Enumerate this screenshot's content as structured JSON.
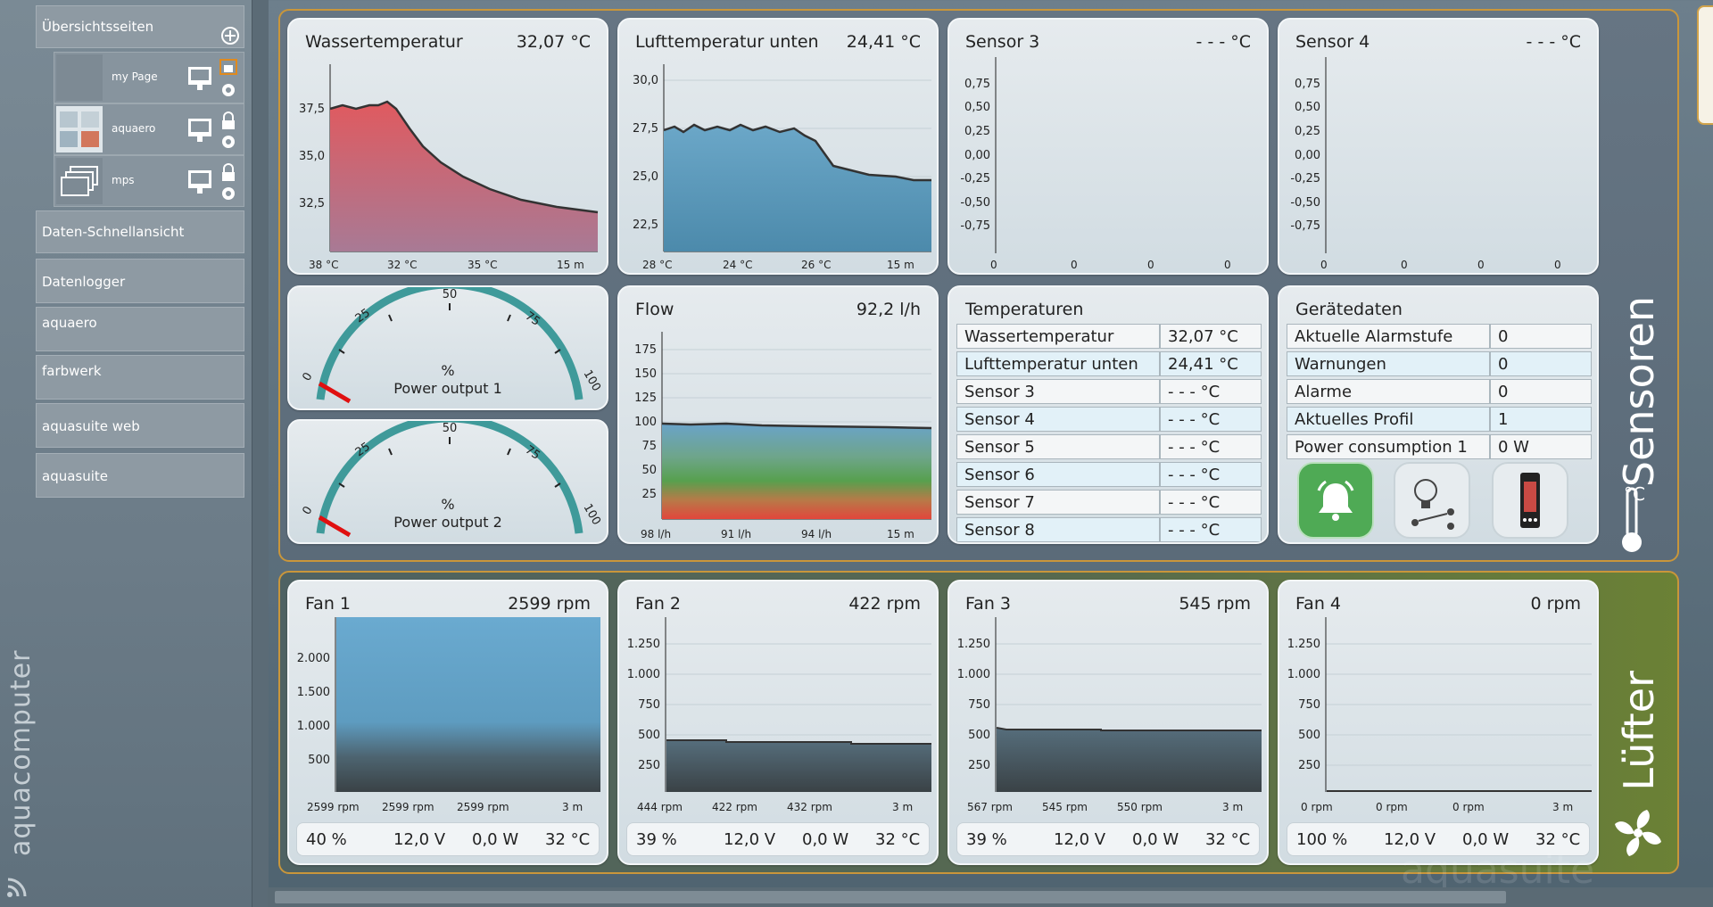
{
  "sidebar": {
    "overview_label": "Übersichtsseiten",
    "pages": [
      {
        "label": "my Page"
      },
      {
        "label": "aquaero"
      },
      {
        "label": "mps"
      }
    ],
    "items": [
      "Daten-Schnellansicht",
      "Datenlogger",
      "aquaero",
      "farbwerk",
      "aquasuite web",
      "aquasuite"
    ],
    "brand": "aquacomputer"
  },
  "groups": {
    "sensors_title": "Sensoren",
    "sensors_unit": "°C",
    "fans_title": "Lüfter"
  },
  "panels": {
    "water": {
      "title": "Wassertemperatur",
      "value": "32,07 °C",
      "stats": [
        "38 °C",
        "32 °C",
        "35 °C",
        "15 m"
      ],
      "ticks": [
        "37,5",
        "35,0",
        "32,5"
      ]
    },
    "air": {
      "title": "Lufttemperatur unten",
      "value": "24,41 °C",
      "stats": [
        "28 °C",
        "24 °C",
        "26 °C",
        "15 m"
      ],
      "ticks": [
        "30,0",
        "27,5",
        "25,0",
        "22,5"
      ]
    },
    "sensor3": {
      "title": "Sensor 3",
      "value": "- - - °C",
      "stats": [
        "0",
        "0",
        "0",
        "0"
      ]
    },
    "sensor4": {
      "title": "Sensor 4",
      "value": "- - - °C",
      "stats": [
        "0",
        "0",
        "0",
        "0"
      ]
    },
    "empty_ticks": [
      "0,75",
      "0,50",
      "0,25",
      "0,00",
      "-0,25",
      "-0,50",
      "-0,75"
    ],
    "power1": {
      "unit": "%",
      "label": "Power output 1",
      "ticks": [
        "0",
        "25",
        "50",
        "75",
        "100"
      ]
    },
    "power2": {
      "unit": "%",
      "label": "Power output 2",
      "ticks": [
        "0",
        "25",
        "50",
        "75",
        "100"
      ]
    },
    "flow": {
      "title": "Flow",
      "value": "92,2 l/h",
      "stats": [
        "98 l/h",
        "91 l/h",
        "94 l/h",
        "15 m"
      ],
      "ticks": [
        "175",
        "150",
        "125",
        "100",
        "75",
        "50",
        "25"
      ]
    },
    "temps": {
      "title": "Temperaturen",
      "rows": [
        [
          "Wassertemperatur",
          "32,07 °C"
        ],
        [
          "Lufttemperatur unten",
          "24,41 °C"
        ],
        [
          "Sensor 3",
          "- - - °C"
        ],
        [
          "Sensor 4",
          "- - - °C"
        ],
        [
          "Sensor 5",
          "- - - °C"
        ],
        [
          "Sensor 6",
          "- - - °C"
        ],
        [
          "Sensor 7",
          "- - - °C"
        ],
        [
          "Sensor 8",
          "- - - °C"
        ]
      ]
    },
    "device": {
      "title": "Gerätedaten",
      "rows": [
        [
          "Aktuelle Alarmstufe",
          "0"
        ],
        [
          "Warnungen",
          "0"
        ],
        [
          "Alarme",
          "0"
        ],
        [
          "Aktuelles Profil",
          "1"
        ],
        [
          "Power consumption 1",
          "0 W"
        ]
      ]
    }
  },
  "fans": [
    {
      "title": "Fan 1",
      "value": "2599 rpm",
      "stats": [
        "2599 rpm",
        "2599 rpm",
        "2599 rpm",
        "3 m"
      ],
      "ticks": [
        "2.000",
        "1.500",
        "1.000",
        "500"
      ],
      "bar": [
        "40 %",
        "12,0 V",
        "0,0 W",
        "32 °C"
      ]
    },
    {
      "title": "Fan 2",
      "value": "422 rpm",
      "stats": [
        "444 rpm",
        "422 rpm",
        "432 rpm",
        "3 m"
      ],
      "ticks": [
        "1.250",
        "1.000",
        "750",
        "500",
        "250"
      ],
      "bar": [
        "39 %",
        "12,0 V",
        "0,0 W",
        "32 °C"
      ]
    },
    {
      "title": "Fan 3",
      "value": "545 rpm",
      "stats": [
        "567 rpm",
        "545 rpm",
        "550 rpm",
        "3 m"
      ],
      "ticks": [
        "1.250",
        "1.000",
        "750",
        "500",
        "250"
      ],
      "bar": [
        "39 %",
        "12,0 V",
        "0,0 W",
        "32 °C"
      ]
    },
    {
      "title": "Fan 4",
      "value": "0 rpm",
      "stats": [
        "0 rpm",
        "0 rpm",
        "0 rpm",
        "3 m"
      ],
      "ticks": [
        "1.250",
        "1.000",
        "750",
        "500",
        "250"
      ],
      "bar": [
        "100 %",
        "12,0 V",
        "0,0 W",
        "32 °C"
      ]
    }
  ],
  "watermark": "aquasuite",
  "colors": {
    "group_border": "#c9963b",
    "gauge": "#3f9a9a",
    "alarm_green": "#4faa55",
    "water_fill": "#d9575f",
    "air_fill": "#5d9ec4"
  }
}
